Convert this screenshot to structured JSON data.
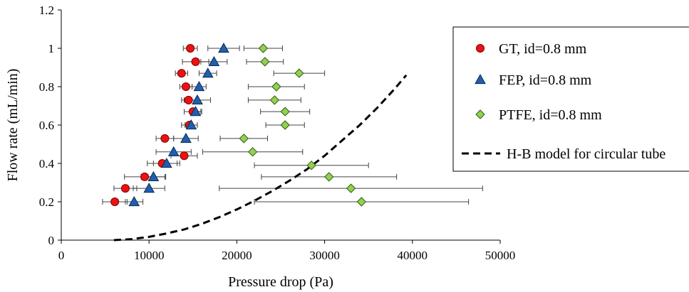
{
  "chart_data": {
    "type": "scatter",
    "title": "",
    "xlabel": "Pressure drop (Pa)",
    "ylabel": "Flow rate (mL/min)",
    "xlim": [
      0,
      50000
    ],
    "ylim": [
      0,
      1.2
    ],
    "x_ticks": [
      0,
      10000,
      20000,
      30000,
      40000,
      50000
    ],
    "x_tick_labels": [
      "0",
      "10000",
      "20000",
      "30000",
      "40000",
      "50000"
    ],
    "y_ticks": [
      0,
      0.2,
      0.4,
      0.6,
      0.8,
      1.0,
      1.2
    ],
    "y_tick_labels": [
      "0",
      "0.2",
      "0.4",
      "0.6",
      "0.8",
      "1",
      "1.2"
    ],
    "grid": false,
    "legend_position": "right",
    "series": [
      {
        "name": "GT, id=0.8 mm",
        "marker": "circle",
        "color": "#ee1111",
        "points": [
          {
            "x": 6100,
            "y": 0.2,
            "xerr": 1400
          },
          {
            "x": 7300,
            "y": 0.27,
            "xerr": 1300
          },
          {
            "x": 9500,
            "y": 0.33,
            "xerr": 2300
          },
          {
            "x": 11500,
            "y": 0.4,
            "xerr": 1700
          },
          {
            "x": 14000,
            "y": 0.44,
            "xerr": 1500
          },
          {
            "x": 11800,
            "y": 0.53,
            "xerr": 1000
          },
          {
            "x": 14600,
            "y": 0.6,
            "xerr": 900
          },
          {
            "x": 15000,
            "y": 0.67,
            "xerr": 1000
          },
          {
            "x": 14500,
            "y": 0.73,
            "xerr": 800
          },
          {
            "x": 14200,
            "y": 0.8,
            "xerr": 700
          },
          {
            "x": 13700,
            "y": 0.87,
            "xerr": 700
          },
          {
            "x": 15300,
            "y": 0.93,
            "xerr": 1500
          },
          {
            "x": 14700,
            "y": 1.0,
            "xerr": 800
          }
        ]
      },
      {
        "name": "FEP, id=0.8 mm",
        "marker": "triangle",
        "color": "#1f5fae",
        "points": [
          {
            "x": 8300,
            "y": 0.2,
            "xerr": 1000
          },
          {
            "x": 10000,
            "y": 0.27,
            "xerr": 1800
          },
          {
            "x": 10500,
            "y": 0.33,
            "xerr": 1400
          },
          {
            "x": 12000,
            "y": 0.4,
            "xerr": 1500
          },
          {
            "x": 12800,
            "y": 0.46,
            "xerr": 2000
          },
          {
            "x": 14200,
            "y": 0.53,
            "xerr": 1400
          },
          {
            "x": 14800,
            "y": 0.6,
            "xerr": 700
          },
          {
            "x": 15300,
            "y": 0.67,
            "xerr": 600
          },
          {
            "x": 15500,
            "y": 0.73,
            "xerr": 1500
          },
          {
            "x": 15700,
            "y": 0.8,
            "xerr": 800
          },
          {
            "x": 16700,
            "y": 0.87,
            "xerr": 1000
          },
          {
            "x": 17400,
            "y": 0.93,
            "xerr": 1500
          },
          {
            "x": 18500,
            "y": 1.0,
            "xerr": 1800
          }
        ]
      },
      {
        "name": "PTFE, id=0.8 mm",
        "marker": "diamond",
        "color": "#92d050",
        "points": [
          {
            "x": 34200,
            "y": 0.2,
            "xerr": 12200
          },
          {
            "x": 33000,
            "y": 0.27,
            "xerr": 15000
          },
          {
            "x": 30500,
            "y": 0.33,
            "xerr": 7700
          },
          {
            "x": 28500,
            "y": 0.39,
            "xerr": 6500
          },
          {
            "x": 21800,
            "y": 0.46,
            "xerr": 5700
          },
          {
            "x": 20800,
            "y": 0.53,
            "xerr": 2700
          },
          {
            "x": 25500,
            "y": 0.6,
            "xerr": 2200
          },
          {
            "x": 25500,
            "y": 0.67,
            "xerr": 2800
          },
          {
            "x": 24300,
            "y": 0.73,
            "xerr": 3000
          },
          {
            "x": 24500,
            "y": 0.8,
            "xerr": 3200
          },
          {
            "x": 27100,
            "y": 0.87,
            "xerr": 2900
          },
          {
            "x": 23200,
            "y": 0.93,
            "xerr": 2100
          },
          {
            "x": 23000,
            "y": 1.0,
            "xerr": 2200
          }
        ]
      },
      {
        "name": "H-B model for circular tube",
        "type": "line",
        "style": "dashed",
        "color": "#000000",
        "x": [
          6000,
          8000,
          10000,
          12000,
          14000,
          16000,
          18000,
          20000,
          22000,
          24000,
          26000,
          28000,
          30000,
          32000,
          34000,
          36000,
          38000,
          39300
        ],
        "y": [
          0.0,
          0.005,
          0.017,
          0.035,
          0.056,
          0.085,
          0.12,
          0.16,
          0.205,
          0.255,
          0.31,
          0.37,
          0.44,
          0.52,
          0.6,
          0.69,
          0.79,
          0.86
        ]
      }
    ]
  }
}
